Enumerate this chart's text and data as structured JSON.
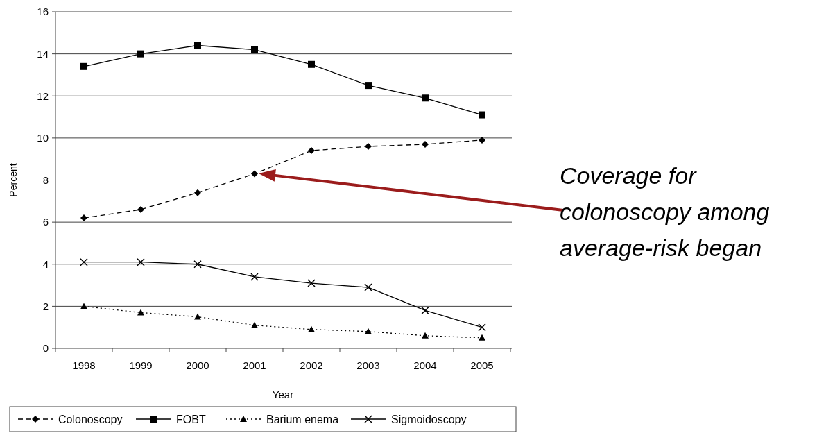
{
  "chart_data": {
    "type": "line",
    "xlabel": "Year",
    "ylabel": "Percent",
    "categories": [
      "1998",
      "1999",
      "2000",
      "2001",
      "2002",
      "2003",
      "2004",
      "2005"
    ],
    "series": [
      {
        "name": "Colonoscopy",
        "color": "#000000",
        "marker": "diamond",
        "line_style": "dashed",
        "values": [
          6.2,
          6.6,
          7.4,
          8.3,
          9.4,
          9.6,
          9.7,
          9.9
        ]
      },
      {
        "name": "FOBT",
        "color": "#000000",
        "marker": "square",
        "line_style": "solid",
        "values": [
          13.4,
          14.0,
          14.4,
          14.2,
          13.5,
          12.5,
          11.9,
          11.1
        ]
      },
      {
        "name": "Barium enema",
        "color": "#000000",
        "marker": "triangle",
        "line_style": "dotted",
        "values": [
          2.0,
          1.7,
          1.5,
          1.1,
          0.9,
          0.8,
          0.6,
          0.5
        ]
      },
      {
        "name": "Sigmoidoscopy",
        "color": "#000000",
        "marker": "cross",
        "line_style": "solid",
        "values": [
          4.1,
          4.1,
          4.0,
          3.4,
          3.1,
          2.9,
          1.8,
          1.0
        ]
      }
    ],
    "ylim": [
      0,
      16
    ],
    "yticks": [
      0,
      2,
      4,
      6,
      8,
      10,
      12,
      14,
      16
    ],
    "grid": "y",
    "legend": "bottom",
    "annotations": [
      "Coverage for colonoscopy among average-risk began"
    ]
  }
}
